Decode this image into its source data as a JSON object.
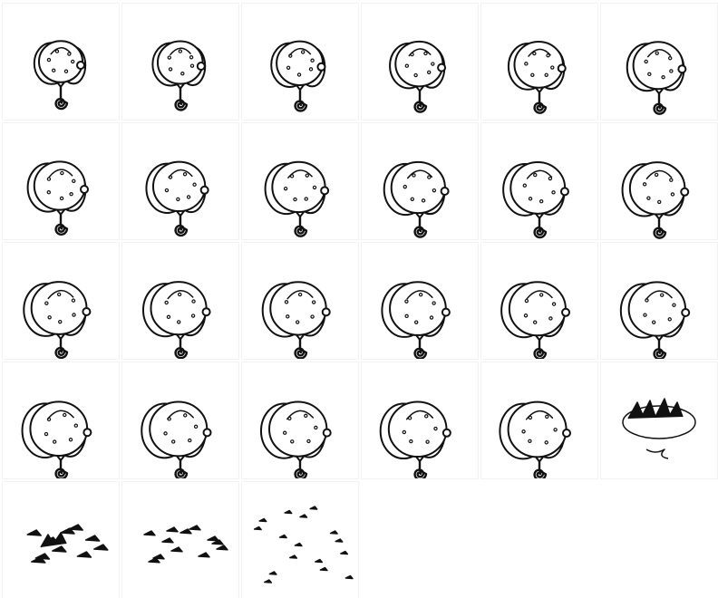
{
  "sheet": {
    "background": "#ffffff",
    "ink_color": "#111111",
    "cell_border_color": "#f2f2f2",
    "columns": 6,
    "rows": 5,
    "frame_count": 27,
    "frames": [
      {
        "index": 1,
        "kind": "balloon",
        "turn": 0.0
      },
      {
        "index": 2,
        "kind": "balloon",
        "turn": 0.1
      },
      {
        "index": 3,
        "kind": "balloon",
        "turn": 0.18
      },
      {
        "index": 4,
        "kind": "balloon",
        "turn": 0.26
      },
      {
        "index": 5,
        "kind": "balloon",
        "turn": 0.34
      },
      {
        "index": 6,
        "kind": "balloon",
        "turn": 0.42
      },
      {
        "index": 7,
        "kind": "balloon",
        "turn": 0.5
      },
      {
        "index": 8,
        "kind": "balloon",
        "turn": 0.58
      },
      {
        "index": 9,
        "kind": "balloon",
        "turn": 0.64
      },
      {
        "index": 10,
        "kind": "balloon",
        "turn": 0.7
      },
      {
        "index": 11,
        "kind": "balloon",
        "turn": 0.74
      },
      {
        "index": 12,
        "kind": "balloon",
        "turn": 0.78
      },
      {
        "index": 13,
        "kind": "balloon",
        "turn": 0.8
      },
      {
        "index": 14,
        "kind": "balloon",
        "turn": 0.82
      },
      {
        "index": 15,
        "kind": "balloon",
        "turn": 0.84
      },
      {
        "index": 16,
        "kind": "balloon",
        "turn": 0.86
      },
      {
        "index": 17,
        "kind": "balloon",
        "turn": 0.88
      },
      {
        "index": 18,
        "kind": "balloon",
        "turn": 0.9
      },
      {
        "index": 19,
        "kind": "balloon",
        "turn": 0.92
      },
      {
        "index": 20,
        "kind": "balloon",
        "turn": 0.94
      },
      {
        "index": 21,
        "kind": "balloon",
        "turn": 0.96
      },
      {
        "index": 22,
        "kind": "balloon",
        "turn": 0.98
      },
      {
        "index": 23,
        "kind": "balloon",
        "turn": 1.0
      },
      {
        "index": 24,
        "kind": "burst",
        "stage": 1
      },
      {
        "index": 25,
        "kind": "burst",
        "stage": 2
      },
      {
        "index": 26,
        "kind": "burst",
        "stage": 3
      },
      {
        "index": 27,
        "kind": "burst",
        "stage": 4
      }
    ]
  }
}
